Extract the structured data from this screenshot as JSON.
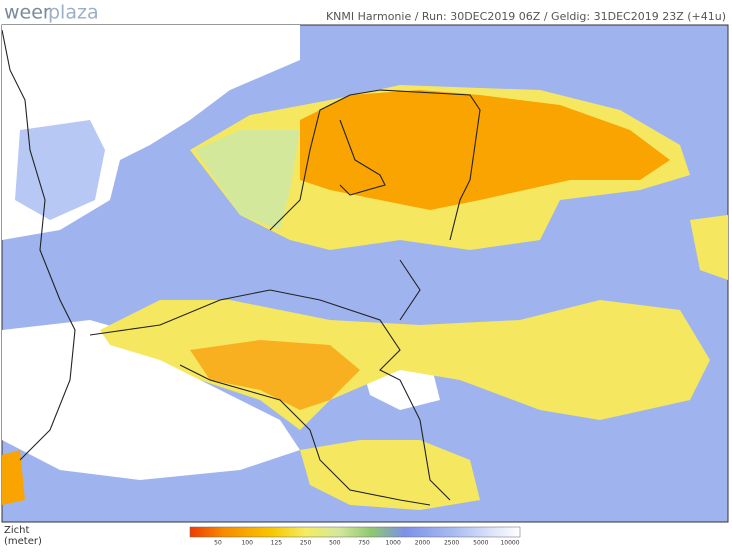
{
  "logo": {
    "part1": "weer",
    "part2": "plaza"
  },
  "header": {
    "title": "KNMI Harmonie  /  Run: 30DEC2019 06Z  /  Geldig: 31DEC2019 23Z (+41u)"
  },
  "legend": {
    "title_line1": "Zicht",
    "title_line2": "(meter)",
    "ticks": [
      "50",
      "100",
      "125",
      "250",
      "500",
      "750",
      "1000",
      "2000",
      "2500",
      "5000",
      "10000"
    ]
  }
}
